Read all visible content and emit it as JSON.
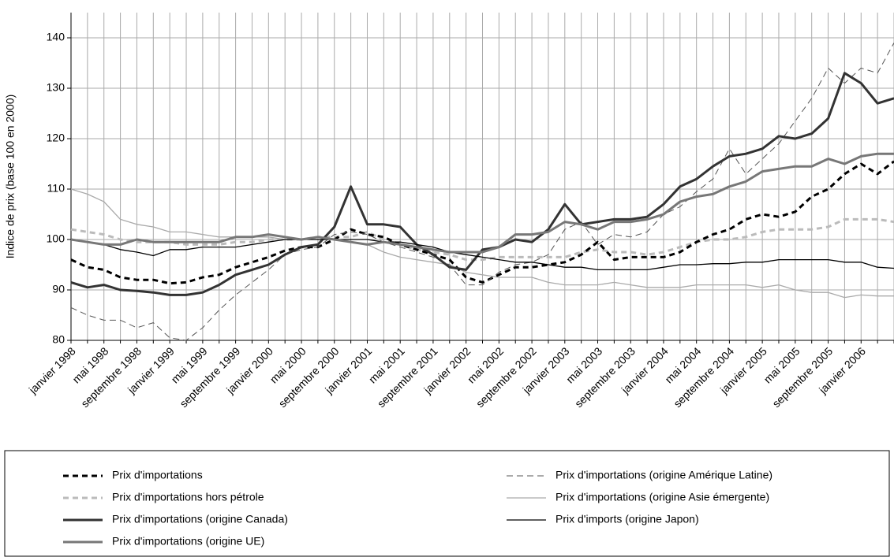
{
  "chart_data": {
    "type": "line",
    "y_label": "Indice de prix (base 100 en 2000)",
    "categories": [
      "janvier 1998",
      null,
      "mai 1998",
      null,
      "septembre 1998",
      null,
      "janvier 1999",
      null,
      "mai 1999",
      null,
      "septembre 1999",
      null,
      "janvier 2000",
      null,
      "mai 2000",
      null,
      "septembre 2000",
      null,
      "janvier 2001",
      null,
      "mai 2001",
      null,
      "septembre 2001",
      null,
      "janvier 2002",
      null,
      "mai 2002",
      null,
      "septembre 2002",
      null,
      "janvier 2003",
      null,
      "mai 2003",
      null,
      "septembre 2003",
      null,
      "janvier 2004",
      null,
      "mai 2004",
      null,
      "septembre 2004",
      null,
      "janvier 2005",
      null,
      "mai 2005",
      null,
      "septembre 2005",
      null,
      "janvier 2006",
      null,
      null
    ],
    "ylim": [
      80,
      145
    ],
    "yticks": [
      80,
      90,
      100,
      110,
      120,
      130,
      140
    ],
    "grid": true,
    "legend": "bottom",
    "series": [
      {
        "name": "Prix d'importations",
        "color": "#000000",
        "dash": true,
        "width": 3,
        "values": [
          96,
          94.5,
          94,
          92.5,
          92,
          92,
          91.3,
          91.5,
          92.5,
          93,
          94.5,
          95.5,
          96.5,
          97.8,
          98.5,
          98.5,
          100,
          102,
          101,
          100.5,
          99,
          98,
          97,
          96,
          92.5,
          91.5,
          93,
          94.5,
          94.5,
          95,
          95.5,
          97,
          99.5,
          96,
          96.5,
          96.5,
          96.5,
          97.5,
          99.5,
          101,
          102,
          104,
          105,
          104.5,
          105.5,
          108.5,
          110,
          113,
          115,
          113,
          115.5
        ]
      },
      {
        "name": "Prix d'importations (origine Amérique Latine)",
        "color": "#555555",
        "dash": true,
        "width": 1,
        "values": [
          86.5,
          85,
          84,
          84,
          82.5,
          83.5,
          80.5,
          80,
          82.5,
          86,
          89,
          91.5,
          94,
          97,
          98,
          98.5,
          101,
          101.5,
          101,
          99.5,
          98.5,
          97.5,
          96.5,
          95,
          91,
          91,
          93.5,
          95,
          95.5,
          97,
          102,
          103.5,
          99,
          101,
          100.5,
          101.5,
          105,
          106.5,
          109.5,
          112,
          118,
          113,
          116,
          119,
          123.5,
          128,
          134,
          131,
          134,
          133,
          139
        ]
      },
      {
        "name": "Prix d'importations hors pétrole",
        "color": "#bbbbbb",
        "dash": true,
        "width": 3,
        "values": [
          102,
          101.5,
          101,
          100,
          99.5,
          99.5,
          99.5,
          99,
          99,
          99,
          99.5,
          99.5,
          100,
          100,
          100,
          100.5,
          100.5,
          100.5,
          101.5,
          100,
          99,
          98,
          97.5,
          97,
          96,
          96,
          96.5,
          96.5,
          96.5,
          96.5,
          96.5,
          97.5,
          98,
          97.5,
          97.5,
          97,
          97.5,
          98.5,
          99.5,
          100,
          100,
          100.5,
          101.5,
          102,
          102,
          102,
          102.5,
          104,
          104,
          104,
          103.5
        ]
      },
      {
        "name": "Prix d'importations (origine Asie émergente)",
        "color": "#aaaaaa",
        "dash": false,
        "width": 1.3,
        "values": [
          110,
          109,
          107.5,
          104,
          103,
          102.5,
          101.5,
          101.5,
          101,
          100.5,
          100.5,
          100.5,
          100.5,
          100,
          100,
          100,
          100,
          99.5,
          99,
          97.5,
          96.5,
          96,
          95.5,
          95,
          93.5,
          93,
          92.5,
          92.5,
          92.5,
          91.5,
          91,
          91,
          91,
          91.5,
          91,
          90.5,
          90.5,
          90.5,
          91,
          91,
          91,
          91,
          90.5,
          91,
          90,
          89.5,
          89.5,
          88.5,
          89,
          88.8,
          88.8
        ]
      },
      {
        "name": "Prix d'importations (origine Canada)",
        "color": "#333333",
        "dash": false,
        "width": 3,
        "values": [
          91.5,
          90.5,
          91,
          90,
          89.8,
          89.5,
          89,
          89,
          89.5,
          91,
          93,
          94,
          95,
          97,
          98.5,
          99,
          102.5,
          110.5,
          103,
          103,
          102.5,
          99,
          97,
          94.5,
          94,
          98,
          98.5,
          100,
          99.5,
          102,
          107,
          103,
          103.5,
          104,
          104,
          104.5,
          107,
          110.5,
          112,
          114.5,
          116.5,
          117,
          118,
          120.5,
          120,
          121,
          124,
          133,
          131,
          127,
          128
        ]
      },
      {
        "name": "Prix d'imports (origine Japon)",
        "color": "#000000",
        "dash": false,
        "width": 1.3,
        "values": [
          100,
          99.5,
          99,
          98,
          97.5,
          96.8,
          98,
          98,
          98.5,
          98.5,
          98.5,
          99,
          99.5,
          100,
          100,
          100,
          100,
          100,
          100,
          99.5,
          99.5,
          99,
          98.5,
          97.5,
          97,
          96.5,
          96,
          95.5,
          95.5,
          95,
          94.5,
          94.5,
          94,
          94,
          94,
          94,
          94.5,
          95,
          95,
          95.2,
          95.2,
          95.5,
          95.5,
          96,
          96,
          96,
          96,
          95.5,
          95.5,
          94.5,
          94.3
        ]
      },
      {
        "name": "Prix d'importations (origine UE)",
        "color": "#777777",
        "dash": false,
        "width": 3,
        "values": [
          100,
          99.5,
          99,
          99,
          100,
          99.5,
          99.5,
          99.5,
          99.5,
          99.5,
          100.5,
          100.5,
          101,
          100.5,
          100,
          100.5,
          100,
          99.5,
          99,
          99.5,
          99,
          98.5,
          98,
          97.5,
          97.5,
          97.5,
          98.5,
          101,
          101,
          101.5,
          103.5,
          103,
          102,
          103.5,
          103.5,
          104,
          105,
          107.5,
          108.5,
          109,
          110.5,
          111.5,
          113.5,
          114,
          114.5,
          114.5,
          116,
          115,
          116.5,
          117,
          117
        ]
      }
    ]
  }
}
